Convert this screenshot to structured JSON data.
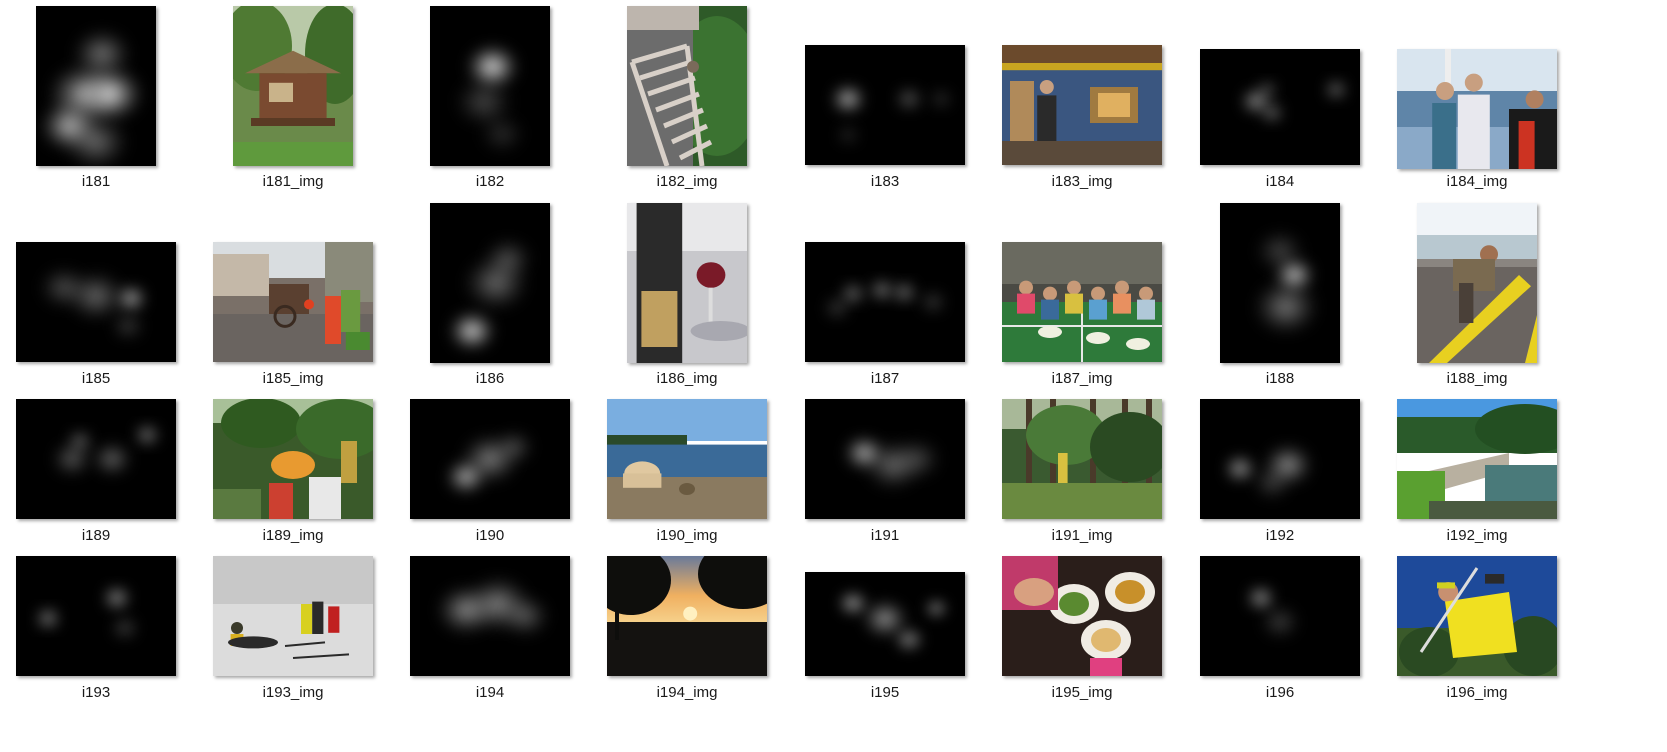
{
  "files": [
    {
      "label": "i181",
      "kind": "map",
      "orient": "portrait",
      "blobs": [
        [
          0.4,
          0.55,
          0.22,
          0.7
        ],
        [
          0.62,
          0.55,
          0.2,
          0.9
        ],
        [
          0.28,
          0.75,
          0.18,
          0.8
        ],
        [
          0.55,
          0.3,
          0.18,
          0.5
        ],
        [
          0.5,
          0.85,
          0.2,
          0.45
        ]
      ]
    },
    {
      "label": "i181_img",
      "kind": "photo",
      "orient": "portrait",
      "scene": "hut"
    },
    {
      "label": "i182",
      "kind": "map",
      "orient": "portrait",
      "blobs": [
        [
          0.52,
          0.38,
          0.16,
          1.0
        ],
        [
          0.45,
          0.6,
          0.18,
          0.3
        ],
        [
          0.6,
          0.8,
          0.14,
          0.2
        ]
      ]
    },
    {
      "label": "i182_img",
      "kind": "photo",
      "orient": "portrait",
      "scene": "ladder"
    },
    {
      "label": "i183",
      "kind": "map",
      "orient": "landscape",
      "blobs": [
        [
          0.27,
          0.45,
          0.1,
          1.0
        ],
        [
          0.65,
          0.45,
          0.08,
          0.55
        ],
        [
          0.85,
          0.45,
          0.07,
          0.3
        ],
        [
          0.27,
          0.75,
          0.07,
          0.25
        ]
      ]
    },
    {
      "label": "i183_img",
      "kind": "photo",
      "orient": "landscape",
      "scene": "cabin"
    },
    {
      "label": "i184",
      "kind": "map",
      "orient": "landscape",
      "blobs": [
        [
          0.35,
          0.45,
          0.09,
          0.85
        ],
        [
          0.45,
          0.55,
          0.07,
          0.7
        ],
        [
          0.85,
          0.35,
          0.07,
          0.7
        ],
        [
          0.42,
          0.35,
          0.06,
          0.6
        ]
      ]
    },
    {
      "label": "i184_img",
      "kind": "photo",
      "orient": "landscape",
      "scene": "boat"
    },
    {
      "label": "i185",
      "kind": "map",
      "orient": "landscape",
      "blobs": [
        [
          0.72,
          0.47,
          0.09,
          1.0
        ],
        [
          0.5,
          0.45,
          0.18,
          0.45
        ],
        [
          0.3,
          0.38,
          0.15,
          0.35
        ],
        [
          0.7,
          0.7,
          0.1,
          0.3
        ]
      ]
    },
    {
      "label": "i185_img",
      "kind": "photo",
      "orient": "landscape",
      "scene": "street"
    },
    {
      "label": "i186",
      "kind": "map",
      "orient": "portrait",
      "blobs": [
        [
          0.35,
          0.8,
          0.14,
          1.0
        ],
        [
          0.55,
          0.5,
          0.2,
          0.45
        ],
        [
          0.65,
          0.35,
          0.15,
          0.35
        ]
      ]
    },
    {
      "label": "i186_img",
      "kind": "photo",
      "orient": "portrait",
      "scene": "wine"
    },
    {
      "label": "i187",
      "kind": "map",
      "orient": "landscape",
      "blobs": [
        [
          0.3,
          0.43,
          0.07,
          0.8
        ],
        [
          0.48,
          0.4,
          0.07,
          0.9
        ],
        [
          0.62,
          0.42,
          0.07,
          0.85
        ],
        [
          0.2,
          0.55,
          0.08,
          0.35
        ],
        [
          0.8,
          0.5,
          0.08,
          0.35
        ]
      ]
    },
    {
      "label": "i187_img",
      "kind": "photo",
      "orient": "landscape",
      "scene": "dinner"
    },
    {
      "label": "i188",
      "kind": "map",
      "orient": "portrait",
      "blobs": [
        [
          0.62,
          0.45,
          0.12,
          1.0
        ],
        [
          0.55,
          0.65,
          0.2,
          0.5
        ],
        [
          0.5,
          0.3,
          0.15,
          0.3
        ]
      ]
    },
    {
      "label": "i188_img",
      "kind": "photo",
      "orient": "portrait",
      "scene": "kayak"
    },
    {
      "label": "i189",
      "kind": "map",
      "orient": "landscape",
      "blobs": [
        [
          0.82,
          0.3,
          0.07,
          0.9
        ],
        [
          0.4,
          0.35,
          0.07,
          0.7
        ],
        [
          0.6,
          0.5,
          0.12,
          0.5
        ],
        [
          0.35,
          0.5,
          0.12,
          0.45
        ]
      ]
    },
    {
      "label": "i189_img",
      "kind": "photo",
      "orient": "landscape",
      "scene": "camp"
    },
    {
      "label": "i190",
      "kind": "map",
      "orient": "landscape",
      "blobs": [
        [
          0.35,
          0.65,
          0.12,
          0.9
        ],
        [
          0.5,
          0.5,
          0.18,
          0.55
        ],
        [
          0.65,
          0.4,
          0.12,
          0.35
        ]
      ]
    },
    {
      "label": "i190_img",
      "kind": "photo",
      "orient": "landscape",
      "scene": "shore"
    },
    {
      "label": "i191",
      "kind": "map",
      "orient": "landscape",
      "blobs": [
        [
          0.37,
          0.45,
          0.12,
          0.9
        ],
        [
          0.55,
          0.55,
          0.18,
          0.45
        ],
        [
          0.7,
          0.5,
          0.15,
          0.3
        ]
      ]
    },
    {
      "label": "i191_img",
      "kind": "photo",
      "orient": "landscape",
      "scene": "forest"
    },
    {
      "label": "i192",
      "kind": "map",
      "orient": "landscape",
      "blobs": [
        [
          0.25,
          0.58,
          0.09,
          0.95
        ],
        [
          0.55,
          0.55,
          0.15,
          0.65
        ],
        [
          0.45,
          0.7,
          0.12,
          0.3
        ]
      ]
    },
    {
      "label": "i192_img",
      "kind": "photo",
      "orient": "landscape",
      "scene": "cove"
    },
    {
      "label": "i193",
      "kind": "map",
      "orient": "landscape",
      "blobs": [
        [
          0.2,
          0.52,
          0.07,
          0.95
        ],
        [
          0.63,
          0.35,
          0.08,
          0.95
        ],
        [
          0.68,
          0.6,
          0.08,
          0.4
        ]
      ]
    },
    {
      "label": "i193_img",
      "kind": "photo",
      "orient": "landscape",
      "scene": "snow"
    },
    {
      "label": "i194",
      "kind": "map",
      "orient": "landscape",
      "blobs": [
        [
          0.35,
          0.45,
          0.18,
          0.6
        ],
        [
          0.55,
          0.4,
          0.2,
          0.55
        ],
        [
          0.72,
          0.5,
          0.15,
          0.4
        ]
      ]
    },
    {
      "label": "i194_img",
      "kind": "photo",
      "orient": "landscape",
      "scene": "sunset"
    },
    {
      "label": "i195",
      "kind": "map",
      "orient": "landscape",
      "blobs": [
        [
          0.3,
          0.3,
          0.1,
          0.7
        ],
        [
          0.5,
          0.45,
          0.15,
          0.6
        ],
        [
          0.65,
          0.65,
          0.1,
          0.6
        ],
        [
          0.82,
          0.35,
          0.08,
          0.6
        ]
      ]
    },
    {
      "label": "i195_img",
      "kind": "photo",
      "orient": "landscape",
      "scene": "table"
    },
    {
      "label": "i196",
      "kind": "map",
      "orient": "landscape",
      "blobs": [
        [
          0.38,
          0.35,
          0.08,
          1.0
        ],
        [
          0.5,
          0.55,
          0.12,
          0.3
        ]
      ]
    },
    {
      "label": "i196_img",
      "kind": "photo",
      "orient": "landscape",
      "scene": "skier"
    }
  ]
}
